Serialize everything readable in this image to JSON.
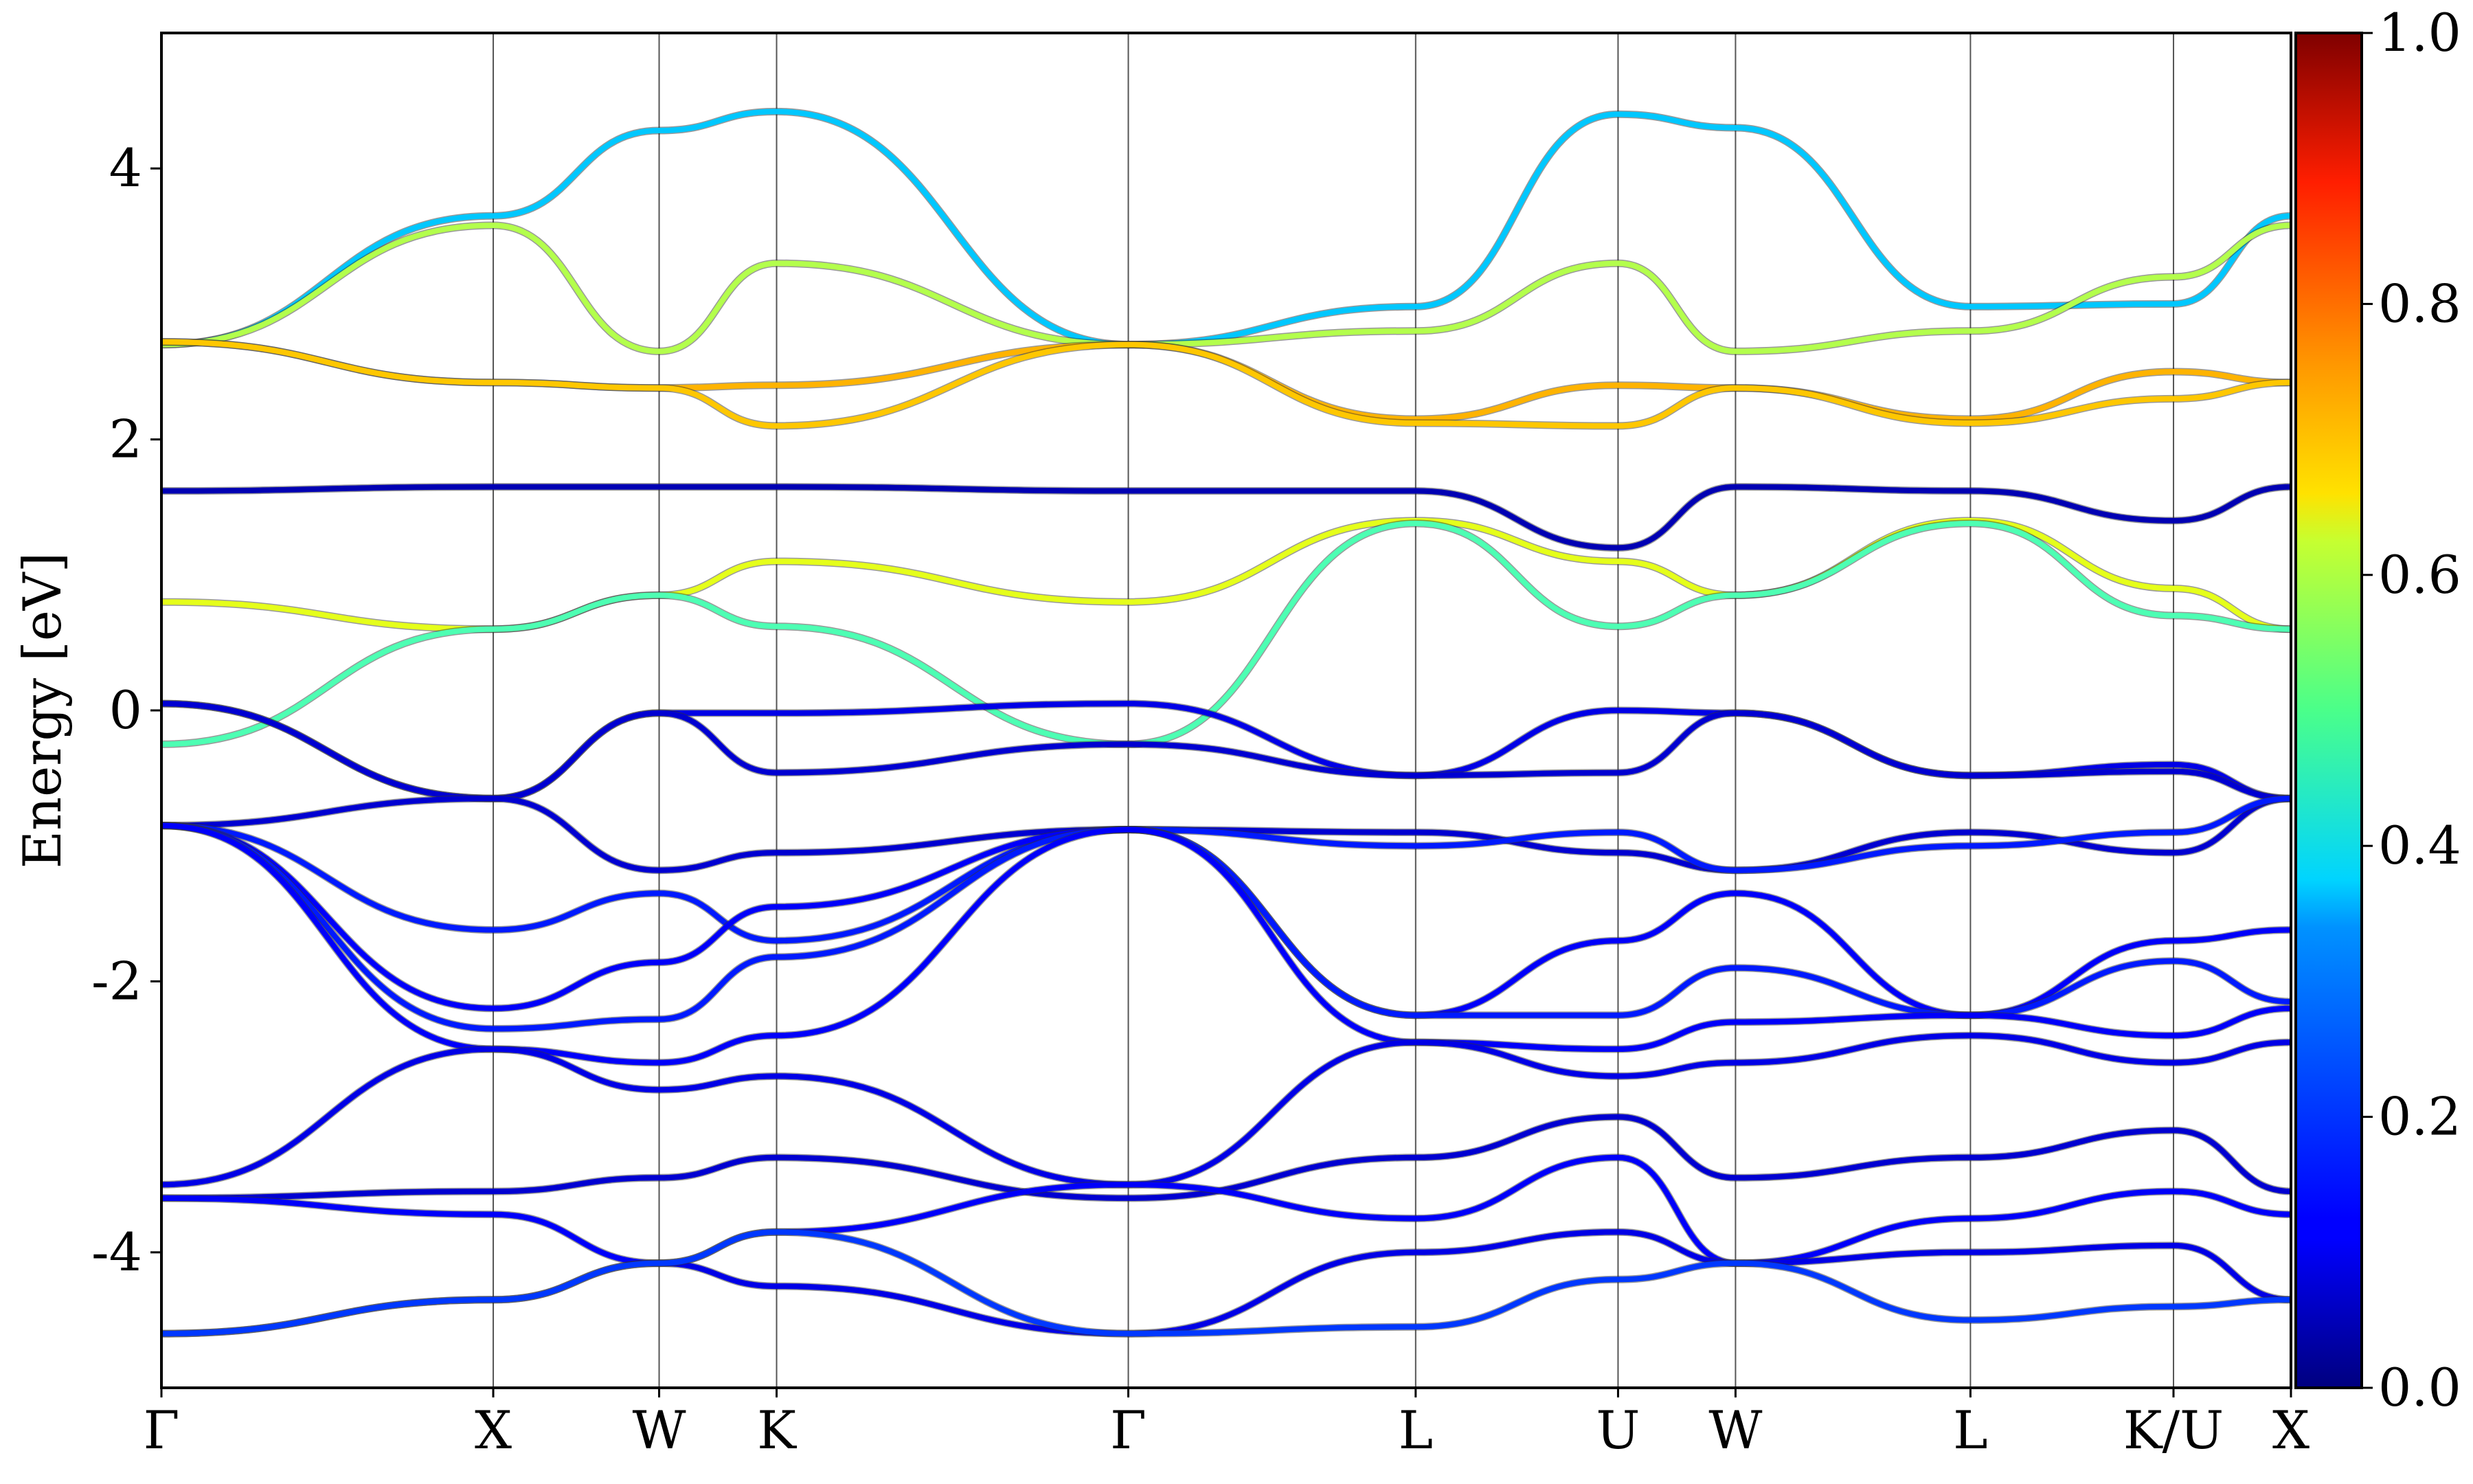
{
  "chart_data": {
    "type": "line",
    "title": "",
    "xlabel": "",
    "ylabel": "Energy [eV]",
    "ylim": [
      -5,
      5
    ],
    "yticks": [
      -4,
      -2,
      0,
      2,
      4
    ],
    "ytick_labels": [
      "-4",
      "-2",
      "0",
      "2",
      "4"
    ],
    "grid": false,
    "kpath": {
      "labels": [
        "Γ",
        "X",
        "W",
        "K",
        "Γ",
        "L",
        "U",
        "W",
        "L",
        "K/U",
        "X"
      ],
      "positions": [
        0.0,
        1.0,
        1.5,
        1.854,
        2.914,
        3.78,
        4.39,
        4.744,
        5.452,
        6.064,
        6.418
      ]
    },
    "colorbar": {
      "colormap": "jet",
      "range": [
        0.0,
        1.0
      ],
      "ticks": [
        0.0,
        0.2,
        0.4,
        0.6,
        0.8,
        1.0
      ],
      "tick_labels": [
        "0.0",
        "0.2",
        "0.4",
        "0.6",
        "0.8",
        "1.0"
      ]
    },
    "series": [
      {
        "weight": 0.32,
        "values": [
          2.7,
          3.65,
          4.28,
          4.42,
          2.7,
          2.98,
          4.4,
          4.3,
          2.98,
          3.0,
          3.65
        ]
      },
      {
        "weight": 0.55,
        "values": [
          2.7,
          3.58,
          2.65,
          3.3,
          2.7,
          2.8,
          3.3,
          2.65,
          2.8,
          3.2,
          3.58
        ]
      },
      {
        "weight": 0.7,
        "values": [
          2.72,
          2.42,
          2.38,
          2.4,
          2.7,
          2.15,
          2.4,
          2.38,
          2.15,
          2.5,
          2.42
        ]
      },
      {
        "weight": 0.68,
        "values": [
          2.72,
          2.42,
          2.38,
          2.1,
          2.7,
          2.12,
          2.1,
          2.38,
          2.12,
          2.3,
          2.42
        ]
      },
      {
        "weight": 0.05,
        "values": [
          1.62,
          1.65,
          1.65,
          1.65,
          1.62,
          1.62,
          1.2,
          1.65,
          1.62,
          1.4,
          1.65
        ]
      },
      {
        "weight": 0.6,
        "values": [
          0.8,
          0.6,
          0.85,
          1.1,
          0.8,
          1.4,
          1.1,
          0.85,
          1.4,
          0.9,
          0.6
        ]
      },
      {
        "weight": 0.45,
        "values": [
          -0.25,
          0.6,
          0.85,
          0.62,
          -0.25,
          1.38,
          0.62,
          0.85,
          1.38,
          0.7,
          0.6
        ]
      },
      {
        "weight": 0.1,
        "values": [
          0.05,
          -0.65,
          -0.02,
          -0.02,
          0.05,
          -0.48,
          0.0,
          -0.02,
          -0.48,
          -0.4,
          -0.65
        ]
      },
      {
        "weight": 0.08,
        "values": [
          0.05,
          -0.65,
          -0.02,
          -0.46,
          -0.25,
          -0.48,
          -0.46,
          -0.02,
          -0.48,
          -0.45,
          -0.65
        ]
      },
      {
        "weight": 0.08,
        "values": [
          -0.85,
          -0.65,
          -1.18,
          -1.05,
          -0.88,
          -0.9,
          -1.05,
          -1.18,
          -0.9,
          -1.05,
          -0.65
        ]
      },
      {
        "weight": 0.15,
        "values": [
          -0.85,
          -1.62,
          -1.35,
          -1.7,
          -0.88,
          -1.0,
          -0.9,
          -1.18,
          -1.0,
          -0.9,
          -0.65
        ]
      },
      {
        "weight": 0.12,
        "values": [
          -0.85,
          -2.2,
          -1.86,
          -1.45,
          -0.88,
          -2.25,
          -1.7,
          -1.35,
          -2.25,
          -1.7,
          -1.62
        ]
      },
      {
        "weight": 0.15,
        "values": [
          -0.85,
          -2.35,
          -2.28,
          -1.82,
          -0.88,
          -2.25,
          -2.25,
          -1.9,
          -2.25,
          -1.85,
          -2.15
        ]
      },
      {
        "weight": 0.12,
        "values": [
          -0.85,
          -2.5,
          -2.6,
          -2.4,
          -0.88,
          -2.45,
          -2.5,
          -2.3,
          -2.25,
          -2.4,
          -2.2
        ]
      },
      {
        "weight": 0.1,
        "values": [
          -3.5,
          -2.5,
          -2.8,
          -2.7,
          -3.5,
          -2.45,
          -2.7,
          -2.6,
          -2.4,
          -2.6,
          -2.45
        ]
      },
      {
        "weight": 0.08,
        "values": [
          -3.6,
          -3.55,
          -3.45,
          -3.3,
          -3.6,
          -3.3,
          -3.0,
          -3.45,
          -3.3,
          -3.1,
          -3.55
        ]
      },
      {
        "weight": 0.12,
        "values": [
          -3.6,
          -3.72,
          -4.08,
          -3.85,
          -3.5,
          -3.75,
          -3.3,
          -4.08,
          -3.75,
          -3.55,
          -3.72
        ]
      },
      {
        "weight": 0.1,
        "values": [
          -4.6,
          -4.35,
          -4.08,
          -4.25,
          -4.6,
          -4.0,
          -3.85,
          -4.08,
          -4.0,
          -3.95,
          -4.35
        ]
      },
      {
        "weight": 0.18,
        "values": [
          -4.6,
          -4.35,
          -4.08,
          -3.85,
          -4.6,
          -4.55,
          -4.2,
          -4.08,
          -4.5,
          -4.4,
          -4.35
        ]
      }
    ]
  }
}
